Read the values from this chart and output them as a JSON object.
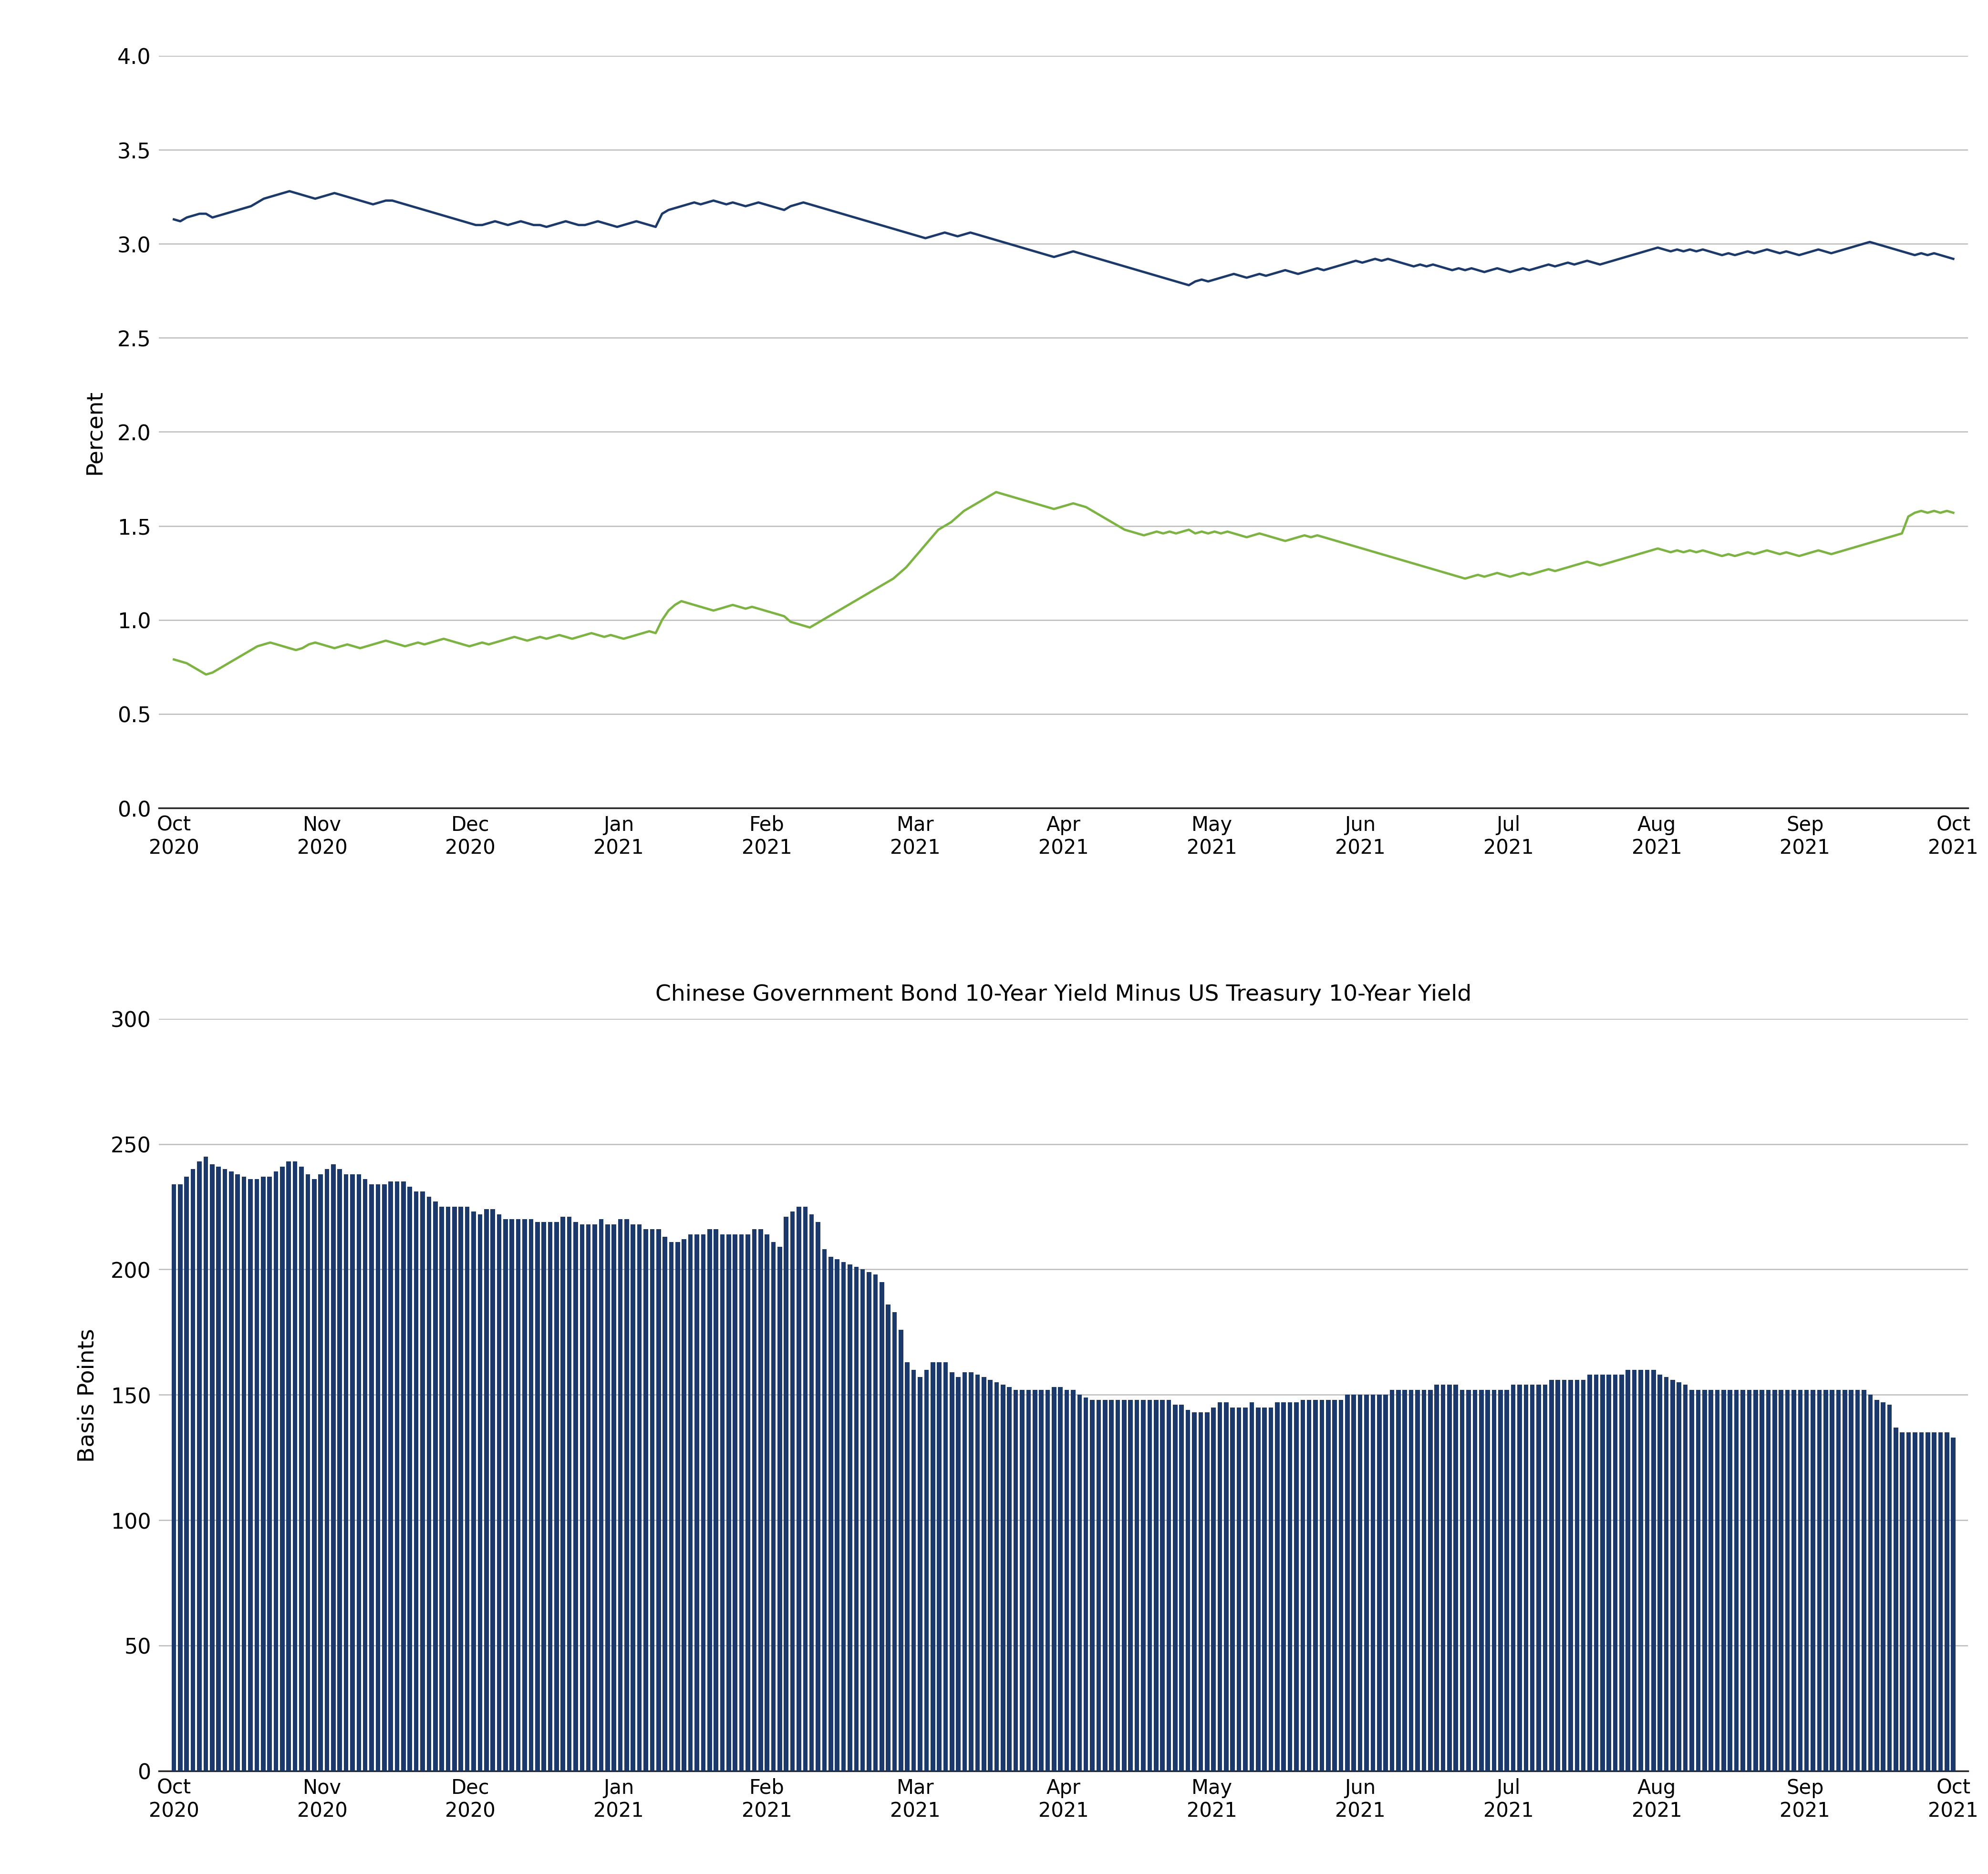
{
  "bar_chart_title": "Chinese Government Bond 10-Year Yield Minus US Treasury 10-Year Yield",
  "legend_labels": [
    "Chinese Government Bond 10-Year Yield",
    "US Treasury 10-Year Yield"
  ],
  "legend_colors": [
    "#1B3A6B",
    "#7CB342"
  ],
  "line_ylabel": "Percent",
  "bar_ylabel": "Basis Points",
  "line_ylim": [
    0.0,
    4.0
  ],
  "line_yticks": [
    0.0,
    0.5,
    1.0,
    1.5,
    2.0,
    2.5,
    3.0,
    3.5,
    4.0
  ],
  "bar_ylim": [
    0,
    300
  ],
  "bar_yticks": [
    0,
    50,
    100,
    150,
    200,
    250,
    300
  ],
  "china_bond_color": "#1B3A6B",
  "us_treasury_color": "#7CB342",
  "bar_color": "#1B3A6B",
  "background_color": "#ffffff",
  "grid_color": "#bbbbbb",
  "x_tick_labels": [
    "Oct\n2020",
    "Nov\n2020",
    "Dec\n2020",
    "Jan\n2021",
    "Feb\n2021",
    "Mar\n2021",
    "Apr\n2021",
    "May\n2021",
    "Jun\n2021",
    "Jul\n2021",
    "Aug\n2021",
    "Sep\n2021",
    "Oct\n2021"
  ],
  "china_bond_yields": [
    3.13,
    3.12,
    3.14,
    3.15,
    3.16,
    3.16,
    3.14,
    3.15,
    3.16,
    3.17,
    3.18,
    3.19,
    3.2,
    3.22,
    3.24,
    3.25,
    3.26,
    3.27,
    3.28,
    3.27,
    3.26,
    3.25,
    3.24,
    3.25,
    3.26,
    3.27,
    3.26,
    3.25,
    3.24,
    3.23,
    3.22,
    3.21,
    3.22,
    3.23,
    3.23,
    3.22,
    3.21,
    3.2,
    3.19,
    3.18,
    3.17,
    3.16,
    3.15,
    3.14,
    3.13,
    3.12,
    3.11,
    3.1,
    3.1,
    3.11,
    3.12,
    3.11,
    3.1,
    3.11,
    3.12,
    3.11,
    3.1,
    3.1,
    3.09,
    3.1,
    3.11,
    3.12,
    3.11,
    3.1,
    3.1,
    3.11,
    3.12,
    3.11,
    3.1,
    3.09,
    3.1,
    3.11,
    3.12,
    3.11,
    3.1,
    3.09,
    3.16,
    3.18,
    3.19,
    3.2,
    3.21,
    3.22,
    3.21,
    3.22,
    3.23,
    3.22,
    3.21,
    3.22,
    3.21,
    3.2,
    3.21,
    3.22,
    3.21,
    3.2,
    3.19,
    3.18,
    3.2,
    3.21,
    3.22,
    3.21,
    3.2,
    3.19,
    3.18,
    3.17,
    3.16,
    3.15,
    3.14,
    3.13,
    3.12,
    3.11,
    3.1,
    3.09,
    3.08,
    3.07,
    3.06,
    3.05,
    3.04,
    3.03,
    3.04,
    3.05,
    3.06,
    3.05,
    3.04,
    3.05,
    3.06,
    3.05,
    3.04,
    3.03,
    3.02,
    3.01,
    3.0,
    2.99,
    2.98,
    2.97,
    2.96,
    2.95,
    2.94,
    2.93,
    2.94,
    2.95,
    2.96,
    2.95,
    2.94,
    2.93,
    2.92,
    2.91,
    2.9,
    2.89,
    2.88,
    2.87,
    2.86,
    2.85,
    2.84,
    2.83,
    2.82,
    2.81,
    2.8,
    2.79,
    2.78,
    2.8,
    2.81,
    2.8,
    2.81,
    2.82,
    2.83,
    2.84,
    2.83,
    2.82,
    2.83,
    2.84,
    2.83,
    2.84,
    2.85,
    2.86,
    2.85,
    2.84,
    2.85,
    2.86,
    2.87,
    2.86,
    2.87,
    2.88,
    2.89,
    2.9,
    2.91,
    2.9,
    2.91,
    2.92,
    2.91,
    2.92,
    2.91,
    2.9,
    2.89,
    2.88,
    2.89,
    2.88,
    2.89,
    2.88,
    2.87,
    2.86,
    2.87,
    2.86,
    2.87,
    2.86,
    2.85,
    2.86,
    2.87,
    2.86,
    2.85,
    2.86,
    2.87,
    2.86,
    2.87,
    2.88,
    2.89,
    2.88,
    2.89,
    2.9,
    2.89,
    2.9,
    2.91,
    2.9,
    2.89,
    2.9,
    2.91,
    2.92,
    2.93,
    2.94,
    2.95,
    2.96,
    2.97,
    2.98,
    2.97,
    2.96,
    2.97,
    2.96,
    2.97,
    2.96,
    2.97,
    2.96,
    2.95,
    2.94,
    2.95,
    2.94,
    2.95,
    2.96,
    2.95,
    2.96,
    2.97,
    2.96,
    2.95,
    2.96,
    2.95,
    2.94,
    2.95,
    2.96,
    2.97,
    2.96,
    2.95,
    2.96,
    2.97,
    2.98,
    2.99,
    3.0,
    3.01,
    3.0,
    2.99,
    2.98,
    2.97,
    2.96,
    2.95,
    2.94,
    2.95,
    2.94,
    2.95,
    2.94,
    2.93,
    2.92
  ],
  "us_treasury_yields": [
    0.79,
    0.78,
    0.77,
    0.75,
    0.73,
    0.71,
    0.72,
    0.74,
    0.76,
    0.78,
    0.8,
    0.82,
    0.84,
    0.86,
    0.87,
    0.88,
    0.87,
    0.86,
    0.85,
    0.84,
    0.85,
    0.87,
    0.88,
    0.87,
    0.86,
    0.85,
    0.86,
    0.87,
    0.86,
    0.85,
    0.86,
    0.87,
    0.88,
    0.89,
    0.88,
    0.87,
    0.86,
    0.87,
    0.88,
    0.87,
    0.88,
    0.89,
    0.9,
    0.89,
    0.88,
    0.87,
    0.86,
    0.87,
    0.88,
    0.87,
    0.88,
    0.89,
    0.9,
    0.91,
    0.9,
    0.89,
    0.9,
    0.91,
    0.9,
    0.91,
    0.92,
    0.91,
    0.9,
    0.91,
    0.92,
    0.93,
    0.92,
    0.91,
    0.92,
    0.91,
    0.9,
    0.91,
    0.92,
    0.93,
    0.94,
    0.93,
    1.0,
    1.05,
    1.08,
    1.1,
    1.09,
    1.08,
    1.07,
    1.06,
    1.05,
    1.06,
    1.07,
    1.08,
    1.07,
    1.06,
    1.07,
    1.06,
    1.05,
    1.04,
    1.03,
    1.02,
    0.99,
    0.98,
    0.97,
    0.96,
    0.98,
    1.0,
    1.02,
    1.04,
    1.06,
    1.08,
    1.1,
    1.12,
    1.14,
    1.16,
    1.18,
    1.2,
    1.22,
    1.25,
    1.28,
    1.32,
    1.36,
    1.4,
    1.44,
    1.48,
    1.5,
    1.52,
    1.55,
    1.58,
    1.6,
    1.62,
    1.64,
    1.66,
    1.68,
    1.67,
    1.66,
    1.65,
    1.64,
    1.63,
    1.62,
    1.61,
    1.6,
    1.59,
    1.6,
    1.61,
    1.62,
    1.61,
    1.6,
    1.58,
    1.56,
    1.54,
    1.52,
    1.5,
    1.48,
    1.47,
    1.46,
    1.45,
    1.46,
    1.47,
    1.46,
    1.47,
    1.46,
    1.47,
    1.48,
    1.46,
    1.47,
    1.46,
    1.47,
    1.46,
    1.47,
    1.46,
    1.45,
    1.44,
    1.45,
    1.46,
    1.45,
    1.44,
    1.43,
    1.42,
    1.43,
    1.44,
    1.45,
    1.44,
    1.45,
    1.44,
    1.43,
    1.42,
    1.41,
    1.4,
    1.39,
    1.38,
    1.37,
    1.36,
    1.35,
    1.34,
    1.33,
    1.32,
    1.31,
    1.3,
    1.29,
    1.28,
    1.27,
    1.26,
    1.25,
    1.24,
    1.23,
    1.22,
    1.23,
    1.24,
    1.23,
    1.24,
    1.25,
    1.24,
    1.23,
    1.24,
    1.25,
    1.24,
    1.25,
    1.26,
    1.27,
    1.26,
    1.27,
    1.28,
    1.29,
    1.3,
    1.31,
    1.3,
    1.29,
    1.3,
    1.31,
    1.32,
    1.33,
    1.34,
    1.35,
    1.36,
    1.37,
    1.38,
    1.37,
    1.36,
    1.37,
    1.36,
    1.37,
    1.36,
    1.37,
    1.36,
    1.35,
    1.34,
    1.35,
    1.34,
    1.35,
    1.36,
    1.35,
    1.36,
    1.37,
    1.36,
    1.35,
    1.36,
    1.35,
    1.34,
    1.35,
    1.36,
    1.37,
    1.36,
    1.35,
    1.36,
    1.37,
    1.38,
    1.39,
    1.4,
    1.41,
    1.42,
    1.43,
    1.44,
    1.45,
    1.46,
    1.55,
    1.57,
    1.58,
    1.57,
    1.58,
    1.57,
    1.58,
    1.57
  ],
  "spread_bars": [
    234,
    234,
    237,
    240,
    243,
    245,
    242,
    241,
    240,
    239,
    238,
    237,
    236,
    236,
    237,
    237,
    239,
    241,
    243,
    243,
    241,
    238,
    236,
    238,
    240,
    242,
    240,
    238,
    238,
    238,
    236,
    234,
    234,
    234,
    235,
    235,
    235,
    233,
    231,
    231,
    229,
    227,
    225,
    225,
    225,
    225,
    225,
    223,
    222,
    224,
    224,
    222,
    220,
    220,
    220,
    220,
    220,
    219,
    219,
    219,
    219,
    221,
    221,
    219,
    218,
    218,
    218,
    220,
    218,
    218,
    220,
    220,
    218,
    218,
    216,
    216,
    216,
    213,
    211,
    211,
    212,
    214,
    214,
    214,
    216,
    216,
    214,
    214,
    214,
    214,
    214,
    216,
    216,
    214,
    211,
    209,
    221,
    223,
    225,
    225,
    222,
    219,
    208,
    205,
    204,
    203,
    202,
    201,
    200,
    199,
    198,
    195,
    186,
    183,
    176,
    163,
    160,
    157,
    160,
    163,
    163,
    163,
    159,
    157,
    159,
    159,
    158,
    157,
    156,
    155,
    154,
    153,
    152,
    152,
    152,
    152,
    152,
    152,
    153,
    153,
    152,
    152,
    150,
    149,
    148,
    148,
    148,
    148,
    148,
    148,
    148,
    148,
    148,
    148,
    148,
    148,
    148,
    146,
    146,
    144,
    143,
    143,
    143,
    145,
    147,
    147,
    145,
    145,
    145,
    147,
    145,
    145,
    145,
    147,
    147,
    147,
    147,
    148,
    148,
    148,
    148,
    148,
    148,
    148,
    150,
    150,
    150,
    150,
    150,
    150,
    150,
    152,
    152,
    152,
    152,
    152,
    152,
    152,
    154,
    154,
    154,
    154,
    152,
    152,
    152,
    152,
    152,
    152,
    152,
    152,
    154,
    154,
    154,
    154,
    154,
    154,
    156,
    156,
    156,
    156,
    156,
    156,
    158,
    158,
    158,
    158,
    158,
    158,
    160,
    160,
    160,
    160,
    160,
    158,
    157,
    156,
    155,
    154,
    152,
    152,
    152,
    152,
    152,
    152,
    152,
    152,
    152,
    152,
    152,
    152,
    152,
    152,
    152,
    152,
    152,
    152,
    152,
    152,
    152,
    152,
    152,
    152,
    152,
    152,
    152,
    152,
    150,
    148,
    147,
    146,
    137,
    135,
    135,
    135,
    135,
    135,
    135,
    135,
    135,
    133
  ]
}
